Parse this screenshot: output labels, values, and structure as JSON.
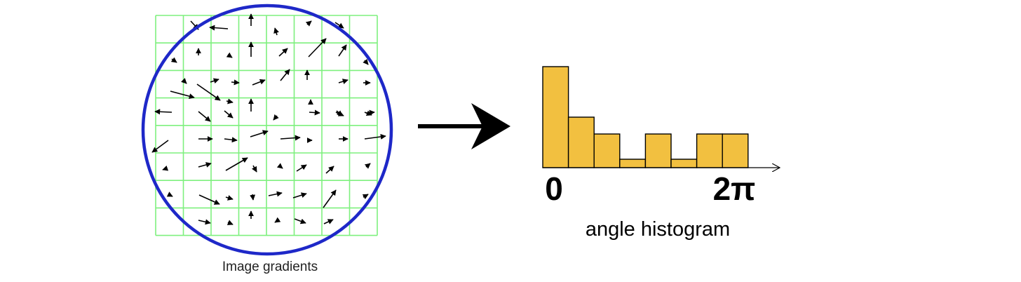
{
  "gradient_panel": {
    "caption": "Image gradients",
    "grid_rows": 8,
    "grid_cols": 8,
    "grid_color": "#7ef07e",
    "circle_color": "#1e28c8",
    "arrow_color": "#000000"
  },
  "transform_arrow": {
    "color": "#000000"
  },
  "histogram": {
    "caption": "angle histogram",
    "axis_start_label": "0",
    "axis_end_label": "2π",
    "bar_color": "#f2c040",
    "bar_outline": "#000000"
  },
  "chart_data": {
    "type": "bar",
    "values": [
      6,
      3,
      2,
      0.5,
      2,
      0.5,
      2,
      2
    ],
    "ylim": [
      0,
      6
    ],
    "xlabel": "angle histogram",
    "tick_labels": [
      "0",
      "2π"
    ]
  }
}
